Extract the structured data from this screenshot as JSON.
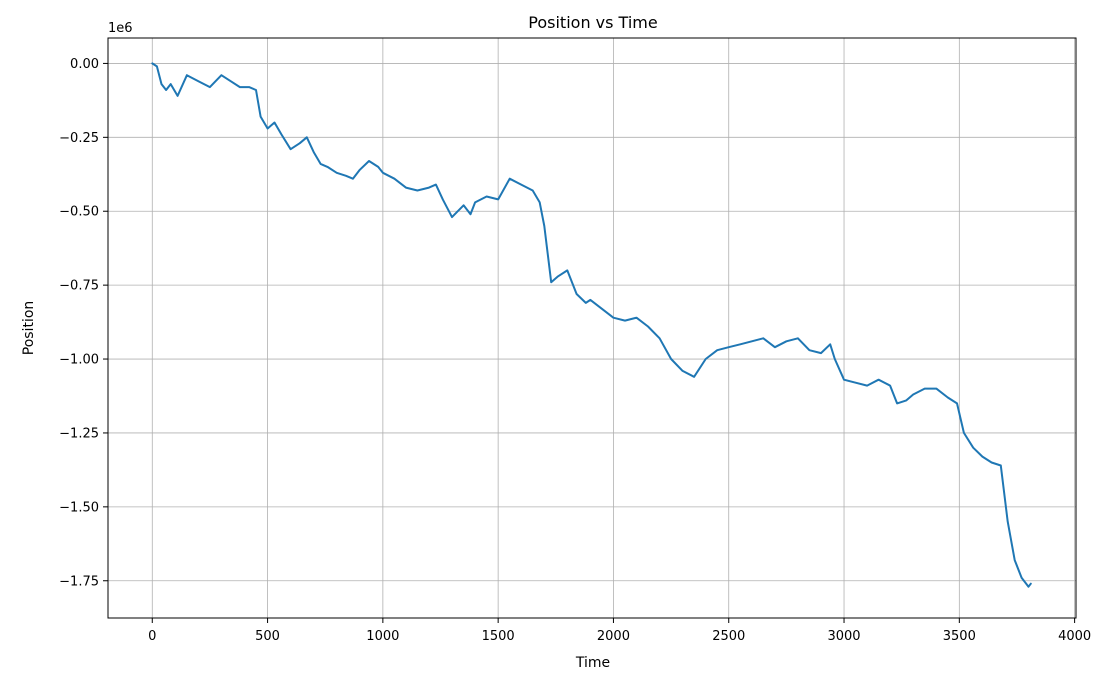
{
  "chart_data": {
    "type": "line",
    "title": "Position vs Time",
    "xlabel": "Time",
    "ylabel": "Position",
    "y_offset_label": "1e6",
    "xlim": [
      -192,
      4006
    ],
    "ylim": [
      -1.876,
      0.086
    ],
    "grid": true,
    "legend": "none",
    "x_ticks": [
      0,
      500,
      1000,
      1500,
      2000,
      2500,
      3000,
      3500,
      4000
    ],
    "x_tick_labels": [
      "0",
      "500",
      "1000",
      "1500",
      "2000",
      "2500",
      "3000",
      "3500",
      "4000"
    ],
    "y_ticks": [
      0.0,
      -0.25,
      -0.5,
      -0.75,
      -1.0,
      -1.25,
      -1.5,
      -1.75
    ],
    "y_tick_labels": [
      "0.00",
      "−0.25",
      "−0.50",
      "−0.75",
      "−1.00",
      "−1.25",
      "−1.50",
      "−1.75"
    ],
    "series": [
      {
        "color": "#1f77b4",
        "points": [
          [
            0,
            0.0
          ],
          [
            20,
            -0.01
          ],
          [
            40,
            -0.07
          ],
          [
            60,
            -0.09
          ],
          [
            80,
            -0.07
          ],
          [
            110,
            -0.11
          ],
          [
            150,
            -0.04
          ],
          [
            200,
            -0.06
          ],
          [
            250,
            -0.08
          ],
          [
            300,
            -0.04
          ],
          [
            340,
            -0.06
          ],
          [
            380,
            -0.08
          ],
          [
            420,
            -0.08
          ],
          [
            450,
            -0.09
          ],
          [
            470,
            -0.18
          ],
          [
            500,
            -0.22
          ],
          [
            530,
            -0.2
          ],
          [
            560,
            -0.24
          ],
          [
            600,
            -0.29
          ],
          [
            640,
            -0.27
          ],
          [
            670,
            -0.25
          ],
          [
            700,
            -0.3
          ],
          [
            730,
            -0.34
          ],
          [
            760,
            -0.35
          ],
          [
            800,
            -0.37
          ],
          [
            840,
            -0.38
          ],
          [
            870,
            -0.39
          ],
          [
            900,
            -0.36
          ],
          [
            940,
            -0.33
          ],
          [
            980,
            -0.35
          ],
          [
            1000,
            -0.37
          ],
          [
            1050,
            -0.39
          ],
          [
            1100,
            -0.42
          ],
          [
            1150,
            -0.43
          ],
          [
            1200,
            -0.42
          ],
          [
            1230,
            -0.41
          ],
          [
            1260,
            -0.46
          ],
          [
            1300,
            -0.52
          ],
          [
            1350,
            -0.48
          ],
          [
            1380,
            -0.51
          ],
          [
            1400,
            -0.47
          ],
          [
            1450,
            -0.45
          ],
          [
            1500,
            -0.46
          ],
          [
            1550,
            -0.39
          ],
          [
            1600,
            -0.41
          ],
          [
            1650,
            -0.43
          ],
          [
            1680,
            -0.47
          ],
          [
            1700,
            -0.55
          ],
          [
            1730,
            -0.74
          ],
          [
            1760,
            -0.72
          ],
          [
            1800,
            -0.7
          ],
          [
            1840,
            -0.78
          ],
          [
            1880,
            -0.81
          ],
          [
            1900,
            -0.8
          ],
          [
            1950,
            -0.83
          ],
          [
            2000,
            -0.86
          ],
          [
            2050,
            -0.87
          ],
          [
            2100,
            -0.86
          ],
          [
            2150,
            -0.89
          ],
          [
            2200,
            -0.93
          ],
          [
            2250,
            -1.0
          ],
          [
            2300,
            -1.04
          ],
          [
            2350,
            -1.06
          ],
          [
            2400,
            -1.0
          ],
          [
            2450,
            -0.97
          ],
          [
            2500,
            -0.96
          ],
          [
            2550,
            -0.95
          ],
          [
            2600,
            -0.94
          ],
          [
            2650,
            -0.93
          ],
          [
            2700,
            -0.96
          ],
          [
            2750,
            -0.94
          ],
          [
            2800,
            -0.93
          ],
          [
            2850,
            -0.97
          ],
          [
            2900,
            -0.98
          ],
          [
            2940,
            -0.95
          ],
          [
            2960,
            -1.0
          ],
          [
            3000,
            -1.07
          ],
          [
            3050,
            -1.08
          ],
          [
            3100,
            -1.09
          ],
          [
            3150,
            -1.07
          ],
          [
            3200,
            -1.09
          ],
          [
            3230,
            -1.15
          ],
          [
            3270,
            -1.14
          ],
          [
            3300,
            -1.12
          ],
          [
            3350,
            -1.1
          ],
          [
            3400,
            -1.1
          ],
          [
            3450,
            -1.13
          ],
          [
            3490,
            -1.15
          ],
          [
            3520,
            -1.25
          ],
          [
            3560,
            -1.3
          ],
          [
            3600,
            -1.33
          ],
          [
            3640,
            -1.35
          ],
          [
            3680,
            -1.36
          ],
          [
            3710,
            -1.55
          ],
          [
            3740,
            -1.68
          ],
          [
            3770,
            -1.74
          ],
          [
            3800,
            -1.77
          ],
          [
            3810,
            -1.76
          ]
        ]
      }
    ]
  }
}
